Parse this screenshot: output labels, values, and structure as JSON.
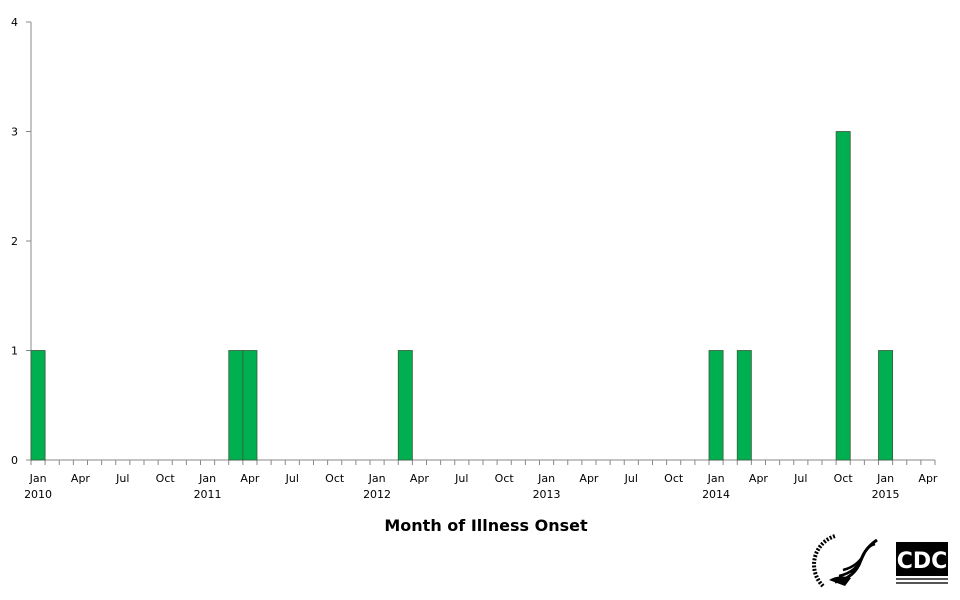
{
  "chart_data": {
    "type": "bar",
    "title": "",
    "xlabel": "Month of Illness Onset",
    "ylabel": "",
    "ylim": [
      0,
      4
    ],
    "yticks": [
      0,
      1,
      2,
      3,
      4
    ],
    "x_range": [
      "2010-01",
      "2015-04"
    ],
    "x_tick_labels": [
      "Jan",
      "Apr",
      "Jul",
      "Oct"
    ],
    "grid": false,
    "bar_color": "#00b050",
    "bars": [
      {
        "month": "2010-01",
        "value": 1
      },
      {
        "month": "2011-03",
        "value": 1
      },
      {
        "month": "2011-04",
        "value": 1
      },
      {
        "month": "2012-03",
        "value": 1
      },
      {
        "month": "2014-01",
        "value": 1
      },
      {
        "month": "2014-03",
        "value": 1
      },
      {
        "month": "2014-10",
        "value": 3
      },
      {
        "month": "2015-01",
        "value": 1
      }
    ]
  },
  "logos": {
    "hhs": "HHS eagle seal",
    "cdc": "CDC"
  }
}
